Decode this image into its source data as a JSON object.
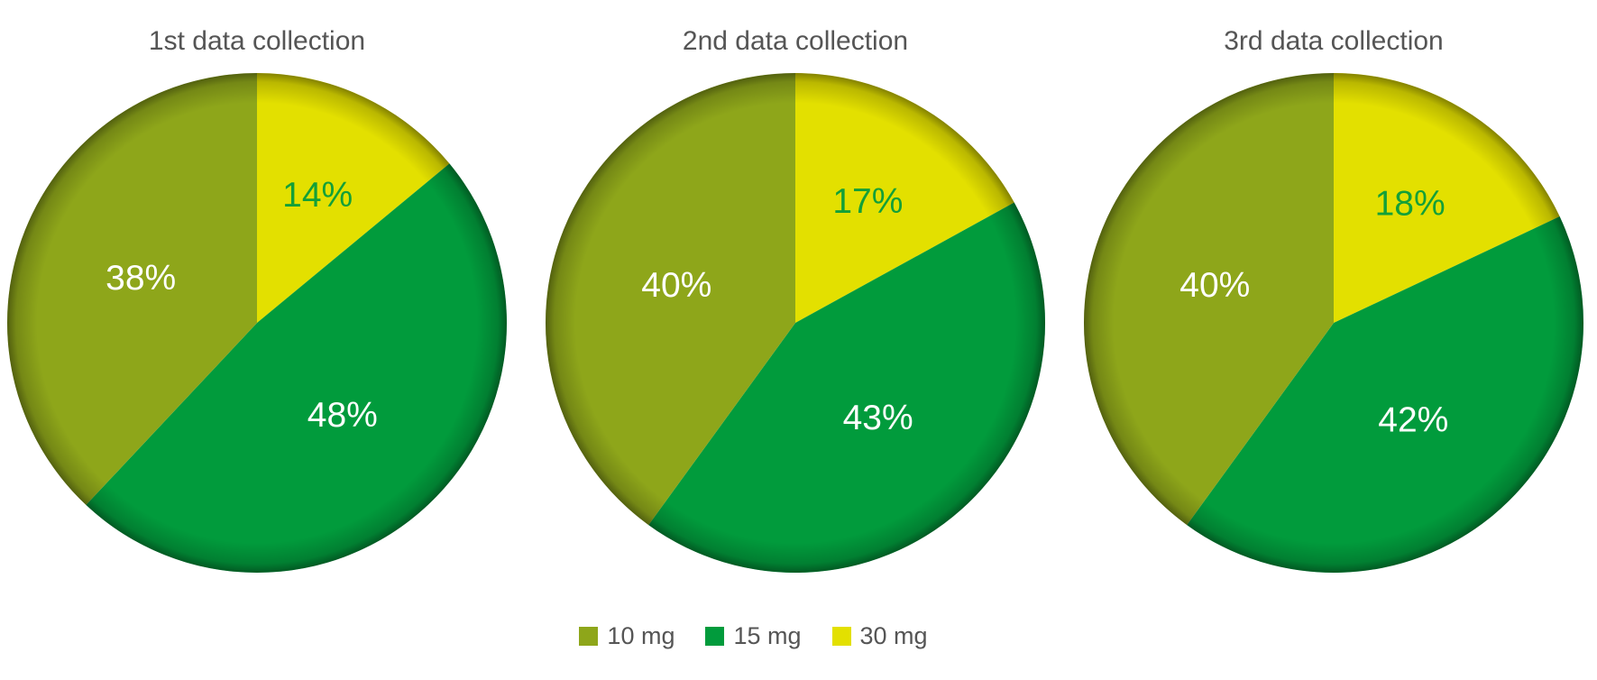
{
  "chart_data": [
    {
      "type": "pie",
      "title": "1st data collection",
      "categories": [
        "10 mg",
        "15 mg",
        "30 mg"
      ],
      "values": [
        38,
        48,
        14
      ],
      "labels": [
        "38%",
        "48%",
        "14%"
      ]
    },
    {
      "type": "pie",
      "title": "2nd data collection",
      "categories": [
        "10 mg",
        "15 mg",
        "30 mg"
      ],
      "values": [
        40,
        43,
        17
      ],
      "labels": [
        "40%",
        "43%",
        "17%"
      ]
    },
    {
      "type": "pie",
      "title": "3rd data collection",
      "categories": [
        "10 mg",
        "15 mg",
        "30 mg"
      ],
      "values": [
        40,
        42,
        18
      ],
      "labels": [
        "40%",
        "42%",
        "18%"
      ]
    }
  ],
  "legend": {
    "placement": "bottom-center",
    "items": [
      {
        "label": "10 mg",
        "color": "#8ea61a"
      },
      {
        "label": "15 mg",
        "color": "#019b3c"
      },
      {
        "label": "30 mg",
        "color": "#e3e000"
      }
    ]
  },
  "label_colors": {
    "10 mg": "#ffffff",
    "15 mg": "#ffffff",
    "30 mg": "#13a038"
  }
}
